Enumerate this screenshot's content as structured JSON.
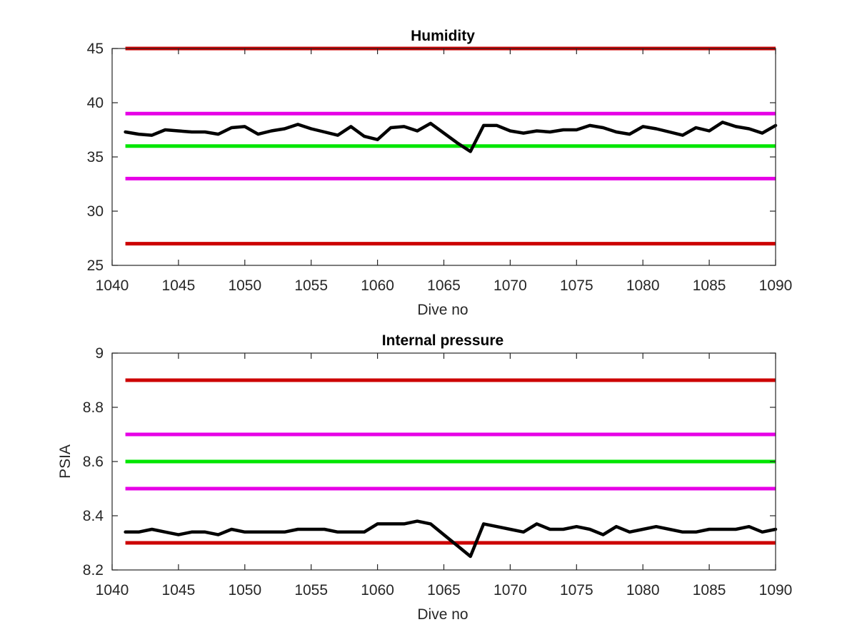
{
  "chart_data": [
    {
      "type": "line",
      "title": "Humidity",
      "xlabel": "Dive no",
      "ylabel": "",
      "xlim": [
        1040,
        1090
      ],
      "ylim": [
        25,
        45
      ],
      "xticks": [
        1040,
        1045,
        1050,
        1055,
        1060,
        1065,
        1070,
        1075,
        1080,
        1085,
        1090
      ],
      "yticks": [
        25,
        30,
        35,
        40,
        45
      ],
      "grid": false,
      "threshold_lines": [
        {
          "y": 45,
          "color": "#cc0000"
        },
        {
          "y": 39,
          "color": "#e600e6"
        },
        {
          "y": 36,
          "color": "#00e600"
        },
        {
          "y": 33,
          "color": "#e600e6"
        },
        {
          "y": 27,
          "color": "#cc0000"
        }
      ],
      "series": [
        {
          "color": "#000000",
          "x": [
            1041,
            1042,
            1043,
            1044,
            1045,
            1046,
            1047,
            1048,
            1049,
            1050,
            1051,
            1052,
            1053,
            1054,
            1055,
            1056,
            1057,
            1058,
            1059,
            1060,
            1061,
            1062,
            1063,
            1064,
            1065,
            1066,
            1067,
            1068,
            1069,
            1070,
            1071,
            1072,
            1073,
            1074,
            1075,
            1076,
            1077,
            1078,
            1079,
            1080,
            1081,
            1082,
            1083,
            1084,
            1085,
            1086,
            1087,
            1088,
            1089,
            1090
          ],
          "y": [
            37.3,
            37.1,
            37.0,
            37.5,
            37.4,
            37.3,
            37.3,
            37.1,
            37.7,
            37.8,
            37.1,
            37.4,
            37.6,
            38.0,
            37.6,
            37.3,
            37.0,
            37.8,
            36.9,
            36.6,
            37.7,
            37.8,
            37.4,
            38.1,
            37.2,
            36.3,
            35.5,
            37.9,
            37.9,
            37.4,
            37.2,
            37.4,
            37.3,
            37.5,
            37.5,
            37.9,
            37.7,
            37.3,
            37.1,
            37.8,
            37.6,
            37.3,
            37.0,
            37.7,
            37.4,
            38.2,
            37.8,
            37.6,
            37.2,
            37.9
          ]
        }
      ]
    },
    {
      "type": "line",
      "title": "Internal pressure",
      "xlabel": "Dive no",
      "ylabel": "PSIA",
      "xlim": [
        1040,
        1090
      ],
      "ylim": [
        8.2,
        9.0
      ],
      "xticks": [
        1040,
        1045,
        1050,
        1055,
        1060,
        1065,
        1070,
        1075,
        1080,
        1085,
        1090
      ],
      "yticks": [
        "8.2",
        "8.4",
        "8.6",
        "8.8",
        "9"
      ],
      "grid": false,
      "threshold_lines": [
        {
          "y": 8.9,
          "color": "#cc0000"
        },
        {
          "y": 8.7,
          "color": "#e600e6"
        },
        {
          "y": 8.6,
          "color": "#00e600"
        },
        {
          "y": 8.5,
          "color": "#e600e6"
        },
        {
          "y": 8.3,
          "color": "#cc0000"
        }
      ],
      "series": [
        {
          "color": "#000000",
          "x": [
            1041,
            1042,
            1043,
            1044,
            1045,
            1046,
            1047,
            1048,
            1049,
            1050,
            1051,
            1052,
            1053,
            1054,
            1055,
            1056,
            1057,
            1058,
            1059,
            1060,
            1061,
            1062,
            1063,
            1064,
            1065,
            1066,
            1067,
            1068,
            1069,
            1070,
            1071,
            1072,
            1073,
            1074,
            1075,
            1076,
            1077,
            1078,
            1079,
            1080,
            1081,
            1082,
            1083,
            1084,
            1085,
            1086,
            1087,
            1088,
            1089,
            1090
          ],
          "y": [
            8.34,
            8.34,
            8.35,
            8.34,
            8.33,
            8.34,
            8.34,
            8.33,
            8.35,
            8.34,
            8.34,
            8.34,
            8.34,
            8.35,
            8.35,
            8.35,
            8.34,
            8.34,
            8.34,
            8.37,
            8.37,
            8.37,
            8.38,
            8.37,
            8.33,
            8.29,
            8.25,
            8.37,
            8.36,
            8.35,
            8.34,
            8.37,
            8.35,
            8.35,
            8.36,
            8.35,
            8.33,
            8.36,
            8.34,
            8.35,
            8.36,
            8.35,
            8.34,
            8.34,
            8.35,
            8.35,
            8.35,
            8.36,
            8.34,
            8.35
          ]
        }
      ]
    }
  ]
}
